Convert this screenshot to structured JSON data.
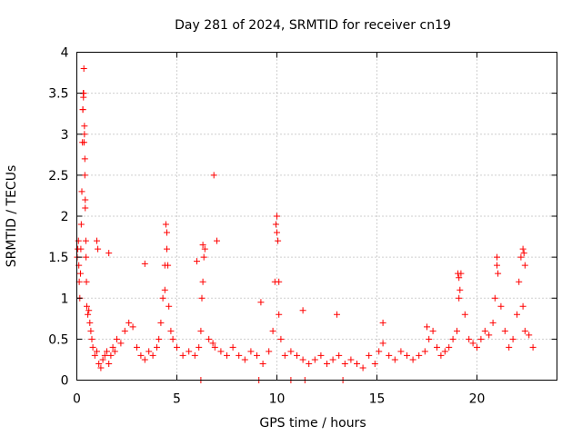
{
  "chart_data": {
    "type": "scatter",
    "title": "Day 281 of 2024, SRMTID for receiver cn19",
    "xlabel": "GPS time / hours",
    "ylabel": "SRMTID / TECUs",
    "xlim": [
      0,
      24
    ],
    "ylim": [
      0,
      4
    ],
    "xticks": [
      0,
      5,
      10,
      15,
      20
    ],
    "yticks": [
      0,
      0.5,
      1,
      1.5,
      2,
      2.5,
      3,
      3.5,
      4
    ],
    "xtick_labels": [
      "0",
      "5",
      "10",
      "15",
      "20"
    ],
    "ytick_labels": [
      "0",
      "0.5",
      "1",
      "1.5",
      "2",
      "2.5",
      "3",
      "3.5",
      "4"
    ],
    "grid": true,
    "marker": "+",
    "series": [
      {
        "name": "SRMTID",
        "color": "#ff0000",
        "x": [
          0.02,
          0.05,
          0.08,
          0.1,
          0.12,
          0.15,
          0.18,
          0.2,
          0.22,
          0.25,
          0.28,
          0.3,
          0.32,
          0.35,
          0.38,
          0.4,
          0.42,
          0.45,
          0.48,
          0.5,
          0.55,
          0.6,
          0.65,
          0.7,
          0.75,
          0.8,
          0.9,
          1.0,
          1.1,
          1.2,
          1.3,
          1.4,
          1.5,
          1.6,
          1.7,
          1.8,
          1.9,
          2.0,
          2.2,
          2.4,
          2.6,
          2.8,
          3.0,
          3.2,
          3.4,
          3.6,
          3.8,
          4.0,
          4.1,
          4.2,
          4.3,
          4.4,
          4.5,
          4.6,
          4.7,
          4.8,
          5.0,
          5.3,
          5.6,
          5.9,
          6.1,
          6.2,
          6.3,
          6.4,
          6.6,
          6.8,
          6.85,
          6.9,
          7.2,
          7.5,
          7.8,
          8.1,
          8.4,
          8.7,
          9.0,
          9.3,
          9.6,
          9.8,
          9.9,
          10.0,
          10.1,
          10.2,
          10.4,
          10.7,
          11.0,
          11.3,
          11.6,
          11.9,
          12.2,
          12.5,
          12.8,
          13.1,
          13.4,
          13.7,
          14.0,
          14.3,
          14.6,
          14.9,
          15.1,
          15.3,
          15.6,
          15.9,
          16.2,
          16.5,
          16.8,
          17.1,
          17.4,
          17.6,
          17.8,
          18.0,
          18.2,
          18.4,
          18.6,
          18.8,
          19.0,
          19.1,
          19.2,
          19.4,
          19.6,
          19.8,
          20.0,
          20.2,
          20.4,
          20.6,
          20.8,
          20.9,
          21.0,
          21.2,
          21.4,
          21.6,
          21.8,
          22.0,
          22.1,
          22.2,
          22.3,
          22.4,
          22.6,
          22.8,
          0.3,
          0.34,
          0.38,
          0.42,
          0.46,
          0.36,
          0.33,
          0.4,
          1.0,
          1.05,
          4.45,
          4.5,
          4.55,
          4.4,
          6.3,
          6.35,
          6.25,
          9.95,
          10.0,
          10.05,
          10.1,
          19.05,
          19.1,
          19.15,
          21.0,
          21.05,
          22.3,
          22.35,
          22.4,
          1.6,
          3.4,
          6.0,
          7.0,
          9.2,
          11.3,
          13.0,
          15.3,
          17.5,
          6.2,
          9.1,
          10.7,
          11.4,
          13.3
        ],
        "y": [
          1.5,
          1.6,
          1.7,
          1.4,
          1.2,
          1.0,
          1.3,
          1.6,
          1.9,
          2.3,
          2.9,
          3.3,
          3.5,
          3.8,
          3.1,
          2.5,
          2.1,
          1.7,
          1.2,
          0.9,
          0.8,
          0.85,
          0.7,
          0.6,
          0.5,
          0.4,
          0.3,
          0.35,
          0.2,
          0.15,
          0.25,
          0.3,
          0.35,
          0.2,
          0.3,
          0.4,
          0.35,
          0.5,
          0.45,
          0.6,
          0.7,
          0.65,
          0.4,
          0.3,
          0.25,
          0.35,
          0.3,
          0.4,
          0.5,
          0.7,
          1.0,
          1.4,
          1.8,
          0.9,
          0.6,
          0.5,
          0.4,
          0.3,
          0.35,
          0.3,
          0.4,
          0.6,
          1.2,
          1.6,
          0.5,
          0.45,
          2.5,
          0.4,
          0.35,
          0.3,
          0.4,
          0.3,
          0.25,
          0.35,
          0.3,
          0.2,
          0.35,
          0.6,
          1.2,
          1.8,
          0.8,
          0.5,
          0.3,
          0.35,
          0.3,
          0.25,
          0.2,
          0.25,
          0.3,
          0.2,
          0.25,
          0.3,
          0.2,
          0.25,
          0.2,
          0.15,
          0.3,
          0.2,
          0.35,
          0.45,
          0.3,
          0.25,
          0.35,
          0.3,
          0.25,
          0.3,
          0.35,
          0.5,
          0.6,
          0.4,
          0.3,
          0.35,
          0.4,
          0.5,
          0.6,
          1.0,
          1.3,
          0.8,
          0.5,
          0.45,
          0.4,
          0.5,
          0.6,
          0.55,
          0.7,
          1.0,
          1.5,
          0.9,
          0.6,
          0.4,
          0.5,
          0.8,
          1.2,
          1.5,
          0.9,
          0.6,
          0.55,
          0.4,
          3.3,
          3.5,
          3.0,
          2.2,
          1.5,
          2.9,
          3.45,
          2.7,
          1.7,
          1.6,
          1.9,
          1.6,
          1.4,
          1.1,
          1.65,
          1.5,
          1.0,
          1.9,
          2.0,
          1.7,
          1.2,
          1.3,
          1.25,
          1.1,
          1.4,
          1.3,
          1.6,
          1.55,
          1.4,
          1.55,
          1.42,
          1.45,
          1.7,
          0.95,
          0.85,
          0.8,
          0.7,
          0.65,
          0.0,
          0.0,
          0.0,
          0.0,
          0.0
        ]
      }
    ]
  }
}
